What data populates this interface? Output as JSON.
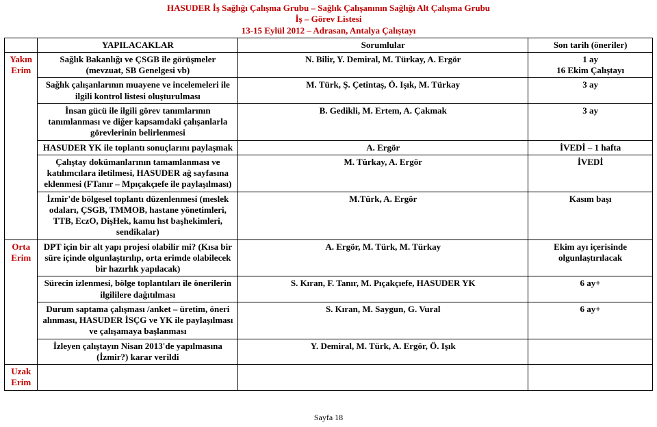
{
  "header": {
    "line1": "HASUDER İş Sağlığı Çalışma Grubu – Sağlık Çalışanının Sağlığı Alt Çalışma Grubu",
    "line2": "İş – Görev Listesi",
    "line3": "13-15 Eylül 2012 – Adrasan,  Antalya Çalıştayı"
  },
  "columns": {
    "erim": "",
    "task": "YAPILACAKLAR",
    "resp": "Sorumlular",
    "dead": "Son tarih (öneriler)"
  },
  "groups": [
    {
      "erim1": "Yakın",
      "erim2": "Erim",
      "rows": [
        {
          "task": "Sağlık Bakanlığı ve ÇSGB ile görüşmeler (mevzuat, SB Genelgesi vb)",
          "resp": "N. Bilir, Y. Demiral, M. Türkay, A. Ergör",
          "dead": "1 ay\n16 Ekim Çalıştayı"
        },
        {
          "task": "Sağlık çalışanlarının muayene ve incelemeleri ile ilgili kontrol listesi oluşturulması",
          "resp": "M. Türk, Ş. Çetintaş, Ö. Işık, M. Türkay",
          "dead": "3 ay"
        },
        {
          "task": "İnsan gücü ile ilgili görev tanımlarının tanımlanması ve diğer kapsamdaki çalışanlarla görevlerinin belirlenmesi",
          "resp": "B. Gedikli, M. Ertem, A. Çakmak",
          "dead": "3 ay"
        },
        {
          "task": "HASUDER YK ile toplantı sonuçlarını paylaşmak",
          "resp": "A. Ergör",
          "dead": "İVEDİ – 1 hafta"
        },
        {
          "task": "Çalıştay dokümanlarının tamamlanması ve katılımcılara iletilmesi, HASUDER ağ sayfasına eklenmesi (FTanır – Mpıçakçıefe ile paylaşılması)",
          "resp": "M. Türkay, A. Ergör",
          "dead": "İVEDİ"
        },
        {
          "task": "İzmir'de bölgesel toplantı düzenlenmesi (meslek odaları, ÇSGB, TMMOB, hastane yönetimleri, TTB, EczO, DişHek, kamu hst başhekimleri, sendikalar)",
          "resp": "M.Türk, A. Ergör",
          "dead": "Kasım başı"
        }
      ]
    },
    {
      "erim1": "Orta",
      "erim2": "Erim",
      "rows": [
        {
          "task": "DPT için bir alt yapı projesi olabilir mi? (Kısa bir süre içinde olgunlaştırılıp, orta erimde olabilecek bir hazırlık yapılacak)",
          "resp": "A.  Ergör, M. Türk, M. Türkay",
          "dead": "Ekim ayı içerisinde olgunlaştırılacak"
        },
        {
          "task": "Sürecin izlenmesi, bölge toplantıları ile önerilerin ilgililere dağıtılması",
          "resp": "S. Kıran, F. Tanır, M. Pıçakçıefe, HASUDER YK",
          "dead": "6 ay+"
        },
        {
          "task": "Durum saptama çalışması /anket – üretim, öneri alınması, HASUDER İSÇG ve YK ile paylaşılması ve çalışamaya başlanması",
          "resp": "S. Kıran, M. Saygun, G. Vural",
          "dead": "6 ay+"
        },
        {
          "task": "İzleyen çalıştayın Nisan 2013'de yapılmasına (İzmir?) karar verildi",
          "resp": "Y. Demiral, M. Türk, A. Ergör, Ö. Işık",
          "dead": ""
        }
      ]
    },
    {
      "erim1": "Uzak",
      "erim2": "Erim",
      "rows": []
    }
  ],
  "footer": "Sayfa 18",
  "colors": {
    "accent": "#c00000",
    "border": "#000000",
    "bg": "#ffffff"
  }
}
